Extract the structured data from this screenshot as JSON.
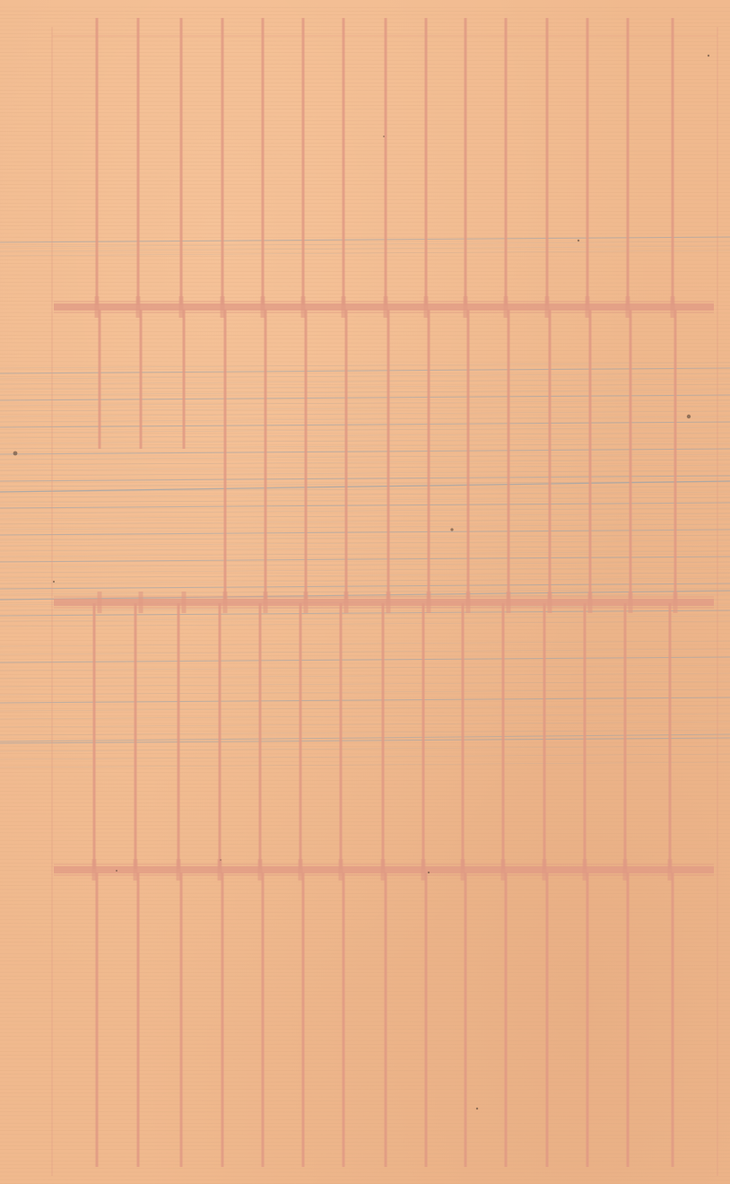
{
  "page": {
    "paper_color": "#f0b98e",
    "red_rule_color": "#e09a84",
    "blue_rule_color": "#97a3ad",
    "faint_rule_color": "#d9a882"
  }
}
